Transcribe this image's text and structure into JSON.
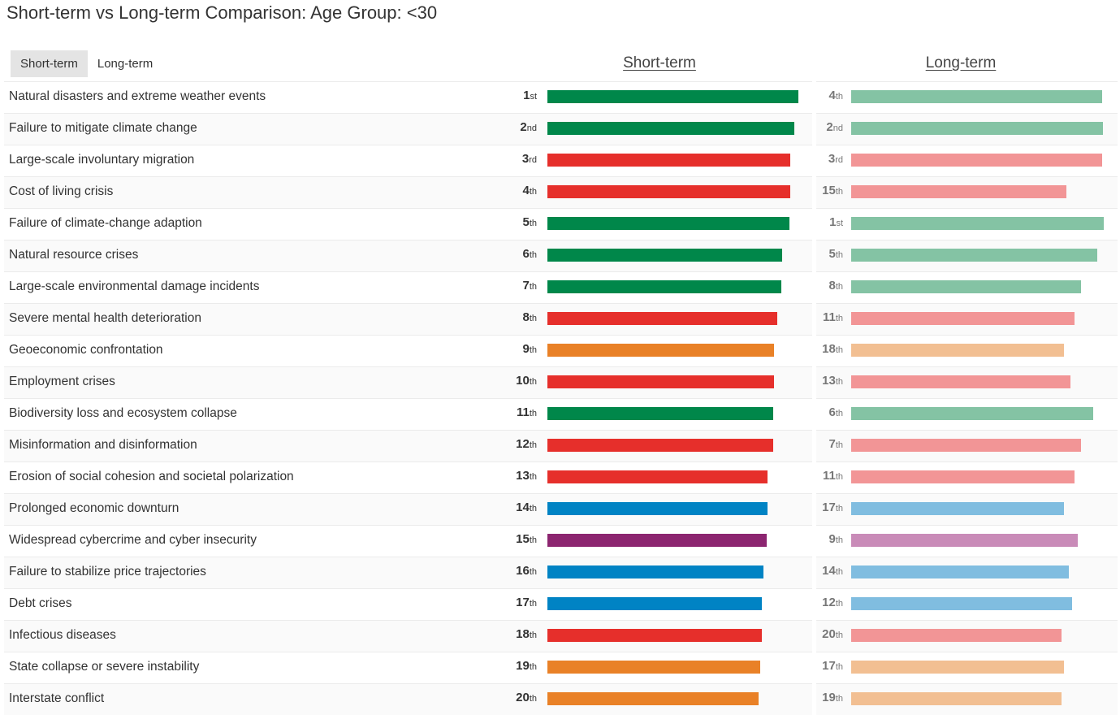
{
  "title": "Short-term vs Long-term Comparison: Age Group: <30",
  "tabs": [
    {
      "label": "Short-term",
      "active": true
    },
    {
      "label": "Long-term",
      "active": false
    }
  ],
  "headers": {
    "short": "Short-term",
    "long": "Long-term"
  },
  "colors": {
    "Environmental": {
      "strong": "#00874a",
      "light": "#84c3a4"
    },
    "Societal": {
      "strong": "#e62f2b",
      "light": "#f29596"
    },
    "Geopolitical": {
      "strong": "#e98127",
      "light": "#f2bf92"
    },
    "Economic": {
      "strong": "#0083c4",
      "light": "#80bde0"
    },
    "Technological": {
      "strong": "#8c2570",
      "light": "#c98bb8"
    }
  },
  "chart_data": {
    "type": "bar",
    "value_scale": {
      "short_max": 10,
      "long_max": 10
    },
    "rows": [
      {
        "risk": "Natural disasters and extreme weather events",
        "category": "Environmental",
        "short_rank": "1",
        "short_suffix": "st",
        "short_value": 10.0,
        "long_rank": "4",
        "long_suffix": "th",
        "long_value": 9.86
      },
      {
        "risk": "Failure to mitigate climate change",
        "category": "Environmental",
        "short_rank": "2",
        "short_suffix": "nd",
        "short_value": 9.84,
        "long_rank": "2",
        "long_suffix": "nd",
        "long_value": 9.9
      },
      {
        "risk": "Large-scale involuntary migration",
        "category": "Societal",
        "short_rank": "3",
        "short_suffix": "rd",
        "short_value": 9.68,
        "long_rank": "3",
        "long_suffix": "rd",
        "long_value": 9.86
      },
      {
        "risk": "Cost of living crisis",
        "category": "Societal",
        "short_rank": "4",
        "short_suffix": "th",
        "short_value": 9.68,
        "long_rank": "15",
        "long_suffix": "th",
        "long_value": 8.47
      },
      {
        "risk": "Failure of climate-change adaption",
        "category": "Environmental",
        "short_rank": "5",
        "short_suffix": "th",
        "short_value": 9.64,
        "long_rank": "1",
        "long_suffix": "st",
        "long_value": 9.93
      },
      {
        "risk": "Natural resource crises",
        "category": "Environmental",
        "short_rank": "6",
        "short_suffix": "th",
        "short_value": 9.35,
        "long_rank": "5",
        "long_suffix": "th",
        "long_value": 9.69
      },
      {
        "risk": "Large-scale environmental damage incidents",
        "category": "Environmental",
        "short_rank": "7",
        "short_suffix": "th",
        "short_value": 9.32,
        "long_rank": "8",
        "long_suffix": "th",
        "long_value": 9.03
      },
      {
        "risk": "Severe mental health deterioration",
        "category": "Societal",
        "short_rank": "8",
        "short_suffix": "th",
        "short_value": 9.16,
        "long_rank": "11",
        "long_suffix": "th",
        "long_value": 8.79
      },
      {
        "risk": "Geoeconomic confrontation",
        "category": "Geopolitical",
        "short_rank": "9",
        "short_suffix": "th",
        "short_value": 9.03,
        "long_rank": "18",
        "long_suffix": "th",
        "long_value": 8.38
      },
      {
        "risk": "Employment crises",
        "category": "Societal",
        "short_rank": "10",
        "short_suffix": "th",
        "short_value": 9.03,
        "long_rank": "13",
        "long_suffix": "th",
        "long_value": 8.63
      },
      {
        "risk": "Biodiversity loss and ecosystem collapse",
        "category": "Environmental",
        "short_rank": "11",
        "short_suffix": "th",
        "short_value": 8.99,
        "long_rank": "6",
        "long_suffix": "th",
        "long_value": 9.51
      },
      {
        "risk": "Misinformation and disinformation",
        "category": "Societal",
        "short_rank": "12",
        "short_suffix": "th",
        "short_value": 8.99,
        "long_rank": "7",
        "long_suffix": "th",
        "long_value": 9.03
      },
      {
        "risk": "Erosion of social cohesion and societal polarization",
        "category": "Societal",
        "short_rank": "13",
        "short_suffix": "th",
        "short_value": 8.77,
        "long_rank": "11",
        "long_suffix": "th",
        "long_value": 8.79
      },
      {
        "risk": "Prolonged economic downturn",
        "category": "Economic",
        "short_rank": "14",
        "short_suffix": "th",
        "short_value": 8.77,
        "long_rank": "17",
        "long_suffix": "th",
        "long_value": 8.38
      },
      {
        "risk": "Widespread cybercrime and cyber insecurity",
        "category": "Technological",
        "short_rank": "15",
        "short_suffix": "th",
        "short_value": 8.74,
        "long_rank": "9",
        "long_suffix": "th",
        "long_value": 8.92
      },
      {
        "risk": "Failure to stabilize price trajectories",
        "category": "Economic",
        "short_rank": "16",
        "short_suffix": "th",
        "short_value": 8.61,
        "long_rank": "14",
        "long_suffix": "th",
        "long_value": 8.56
      },
      {
        "risk": "Debt crises",
        "category": "Economic",
        "short_rank": "17",
        "short_suffix": "th",
        "short_value": 8.54,
        "long_rank": "12",
        "long_suffix": "th",
        "long_value": 8.7
      },
      {
        "risk": "Infectious diseases",
        "category": "Societal",
        "short_rank": "18",
        "short_suffix": "th",
        "short_value": 8.54,
        "long_rank": "20",
        "long_suffix": "th",
        "long_value": 8.27
      },
      {
        "risk": "State collapse or severe instability",
        "category": "Geopolitical",
        "short_rank": "19",
        "short_suffix": "th",
        "short_value": 8.48,
        "long_rank": "17",
        "long_suffix": "th",
        "long_value": 8.38
      },
      {
        "risk": "Interstate conflict",
        "category": "Geopolitical",
        "short_rank": "20",
        "short_suffix": "th",
        "short_value": 8.41,
        "long_rank": "19",
        "long_suffix": "th",
        "long_value": 8.27
      }
    ]
  }
}
